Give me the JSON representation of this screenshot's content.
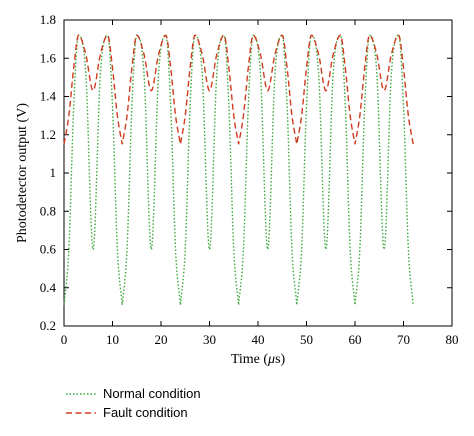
{
  "chart_data": {
    "type": "line",
    "xlabel_prefix": "Time (",
    "xlabel_unit_mu": "μ",
    "xlabel_unit_rest": "s)",
    "ylabel": "Photodetector output (V)",
    "xlim": [
      0,
      80
    ],
    "ylim": [
      0.2,
      1.8
    ],
    "xticks": [
      0,
      10,
      20,
      30,
      40,
      50,
      60,
      70,
      80
    ],
    "yticks": [
      0.2,
      0.4,
      0.6,
      0.8,
      1.0,
      1.2,
      1.4,
      1.6,
      1.8
    ],
    "ytick_labels": [
      "0.2",
      "0.4",
      "0.6",
      "0.8",
      "1",
      "1.2",
      "1.4",
      "1.6",
      "1.8"
    ],
    "grid": false,
    "legend_position": "below",
    "series": [
      {
        "name": "Normal condition",
        "color": "#3aa83a",
        "style": "dotted",
        "x_range": [
          0,
          72
        ],
        "period": 12,
        "points": [
          [
            0,
            0.31
          ],
          [
            1,
            0.6
          ],
          [
            2,
            1.35
          ],
          [
            3,
            1.72
          ],
          [
            4.5,
            1.52
          ],
          [
            6,
            0.6
          ],
          [
            7.5,
            1.52
          ],
          [
            9,
            1.72
          ],
          [
            10,
            1.35
          ],
          [
            11,
            0.6
          ],
          [
            12,
            0.31
          ]
        ]
      },
      {
        "name": "Fault condition",
        "color": "#d03c1e",
        "style": "dashed",
        "x_range": [
          0,
          72
        ],
        "period": 12,
        "points": [
          [
            0,
            1.15
          ],
          [
            1,
            1.3
          ],
          [
            2,
            1.55
          ],
          [
            3,
            1.72
          ],
          [
            4.5,
            1.62
          ],
          [
            6,
            1.43
          ],
          [
            7.5,
            1.62
          ],
          [
            9,
            1.72
          ],
          [
            10,
            1.55
          ],
          [
            11,
            1.3
          ],
          [
            12,
            1.15
          ]
        ]
      }
    ]
  }
}
